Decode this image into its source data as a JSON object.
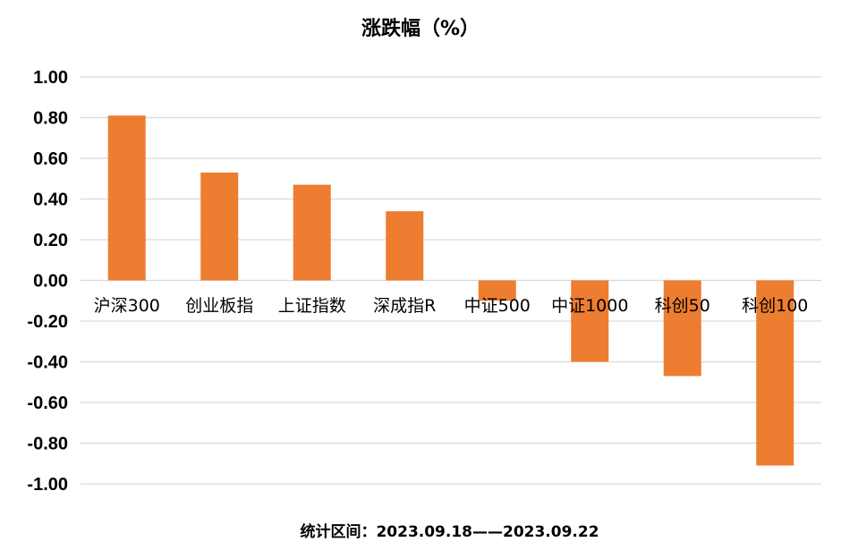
{
  "chart_data": {
    "type": "bar",
    "title": "涨跌幅（%）",
    "note": "统计区间：2023.09.18——2023.09.22",
    "categories": [
      "沪深300",
      "创业板指",
      "上证指数",
      "深成指R",
      "中证500",
      "中证1000",
      "科创50",
      "科创100"
    ],
    "values": [
      0.81,
      0.53,
      0.47,
      0.34,
      -0.1,
      -0.4,
      -0.47,
      -0.91
    ],
    "ylim": [
      -1.0,
      1.0
    ],
    "yticks": [
      "1.00",
      "0.80",
      "0.60",
      "0.40",
      "0.20",
      "0.00",
      "-0.20",
      "-0.40",
      "-0.60",
      "-0.80",
      "-1.00"
    ],
    "grid": true,
    "bar_color": "#ED7D31",
    "grid_color": "#D9D9D9"
  }
}
